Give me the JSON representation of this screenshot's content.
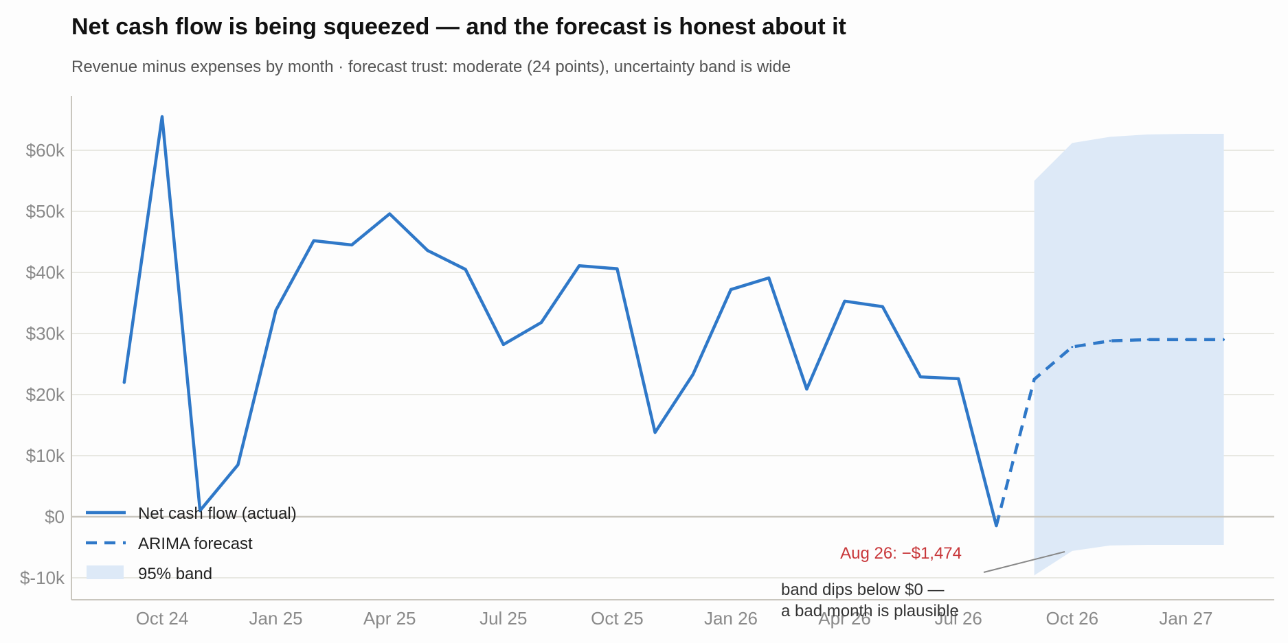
{
  "title": "Net cash flow is being squeezed — and the forecast is honest about it",
  "subtitle": "Revenue minus expenses by month · forecast trust: moderate (24 points), uncertainty band is wide",
  "colors": {
    "actual": "#2f78c8",
    "forecast": "#2f78c8",
    "band": "#dde9f7",
    "grid": "#e2e2da",
    "zero_line": "#c9c6be",
    "callout": "#c8373a",
    "note": "#333333"
  },
  "chart_data": {
    "type": "line",
    "xlabel": "",
    "ylabel": "",
    "ylim": [
      -13000,
      69000
    ],
    "grid": true,
    "legend_position": "bottom-left",
    "x_ticks": [
      "Oct 24",
      "Jan 25",
      "Apr 25",
      "Jul 25",
      "Oct 25",
      "Jan 26",
      "Apr 26",
      "Jul 26",
      "Oct 26",
      "Jan 27"
    ],
    "y_ticks": [
      -10000,
      0,
      10000,
      20000,
      30000,
      40000,
      50000,
      60000
    ],
    "y_tick_labels": [
      "$-10k",
      "$0",
      "$10k",
      "$20k",
      "$30k",
      "$40k",
      "$50k",
      "$60k"
    ],
    "series": [
      {
        "name": "Net cash flow (actual)",
        "style": "solid",
        "x": [
          "2024-09",
          "2024-10",
          "2024-11",
          "2024-12",
          "2025-01",
          "2025-02",
          "2025-03",
          "2025-04",
          "2025-05",
          "2025-06",
          "2025-07",
          "2025-08",
          "2025-09",
          "2025-10",
          "2025-11",
          "2025-12",
          "2026-01",
          "2026-02",
          "2026-03",
          "2026-04",
          "2026-05",
          "2026-06",
          "2026-07",
          "2026-08"
        ],
        "values": [
          22000,
          65500,
          1000,
          8500,
          33800,
          45200,
          44500,
          49600,
          43600,
          40500,
          28200,
          31800,
          41100,
          40600,
          13800,
          23300,
          37200,
          39100,
          20900,
          35300,
          34400,
          22900,
          22600,
          -1474
        ]
      },
      {
        "name": "ARIMA forecast",
        "style": "dashed",
        "x": [
          "2026-08",
          "2026-09",
          "2026-10",
          "2026-11",
          "2026-12",
          "2027-01",
          "2027-02"
        ],
        "values": [
          -1474,
          22500,
          27800,
          28800,
          29000,
          29000,
          29000
        ]
      },
      {
        "name": "95% band",
        "style": "band",
        "x": [
          "2026-09",
          "2026-10",
          "2026-11",
          "2026-12",
          "2027-01",
          "2027-02"
        ],
        "lower": [
          -9600,
          -5600,
          -4700,
          -4600,
          -4600,
          -4600
        ],
        "upper": [
          55000,
          61200,
          62200,
          62600,
          62700,
          62700
        ]
      }
    ],
    "annotations": [
      {
        "text": "Aug 26: −$1,474",
        "color": "#c8373a"
      },
      {
        "text_lines": [
          "band dips below $0 —",
          "a bad month is plausible"
        ],
        "color": "#333333"
      }
    ]
  }
}
